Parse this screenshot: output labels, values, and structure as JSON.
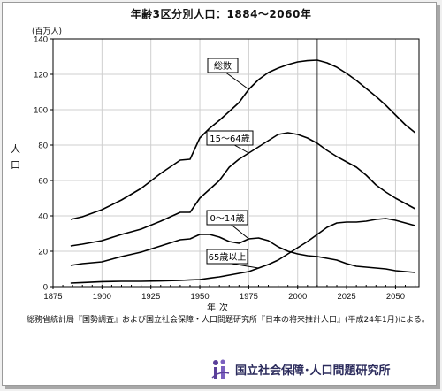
{
  "title": "年齢3区分別人口：1884～2060年",
  "chart_data": {
    "type": "line",
    "title": "年齢3区分別人口：1884～2060年",
    "xlabel": "年次",
    "ylabel": "人口",
    "unit": "(百万人)",
    "xlim": [
      1875,
      2062
    ],
    "ylim": [
      0,
      140
    ],
    "xticks": [
      1875,
      1900,
      1925,
      1950,
      1975,
      2000,
      2025,
      2050
    ],
    "yticks": [
      0,
      20,
      40,
      60,
      80,
      100,
      120,
      140
    ],
    "grid": true,
    "reference_line_x": 2010,
    "series": [
      {
        "name": "総数",
        "points": [
          [
            1884,
            38
          ],
          [
            1890,
            39.5
          ],
          [
            1900,
            43.5
          ],
          [
            1910,
            49
          ],
          [
            1920,
            55.5
          ],
          [
            1930,
            64
          ],
          [
            1940,
            71.5
          ],
          [
            1945,
            72
          ],
          [
            1950,
            84
          ],
          [
            1955,
            89.5
          ],
          [
            1960,
            94
          ],
          [
            1965,
            99
          ],
          [
            1970,
            104
          ],
          [
            1975,
            111.5
          ],
          [
            1980,
            117
          ],
          [
            1985,
            121
          ],
          [
            1990,
            123.5
          ],
          [
            1995,
            125.5
          ],
          [
            2000,
            127
          ],
          [
            2005,
            127.7
          ],
          [
            2010,
            128
          ],
          [
            2015,
            126.5
          ],
          [
            2020,
            124
          ],
          [
            2025,
            120.5
          ],
          [
            2030,
            116.5
          ],
          [
            2035,
            112
          ],
          [
            2040,
            107.5
          ],
          [
            2045,
            102.5
          ],
          [
            2050,
            97
          ],
          [
            2055,
            91.5
          ],
          [
            2060,
            87
          ]
        ]
      },
      {
        "name": "15～64歳",
        "points": [
          [
            1884,
            23
          ],
          [
            1890,
            24
          ],
          [
            1900,
            26
          ],
          [
            1910,
            29.5
          ],
          [
            1920,
            32.5
          ],
          [
            1930,
            37
          ],
          [
            1940,
            42
          ],
          [
            1945,
            42
          ],
          [
            1950,
            50
          ],
          [
            1955,
            55
          ],
          [
            1960,
            60
          ],
          [
            1965,
            67.5
          ],
          [
            1970,
            72
          ],
          [
            1975,
            75.5
          ],
          [
            1980,
            79
          ],
          [
            1985,
            82.5
          ],
          [
            1990,
            86
          ],
          [
            1995,
            87
          ],
          [
            2000,
            86
          ],
          [
            2005,
            84
          ],
          [
            2010,
            81
          ],
          [
            2015,
            77
          ],
          [
            2020,
            73.5
          ],
          [
            2025,
            70.5
          ],
          [
            2030,
            67.5
          ],
          [
            2035,
            63
          ],
          [
            2040,
            57.5
          ],
          [
            2045,
            53.5
          ],
          [
            2050,
            50
          ],
          [
            2055,
            47
          ],
          [
            2060,
            44
          ]
        ]
      },
      {
        "name": "0～14歳",
        "points": [
          [
            1884,
            12
          ],
          [
            1890,
            13
          ],
          [
            1900,
            14
          ],
          [
            1910,
            17
          ],
          [
            1920,
            19.5
          ],
          [
            1930,
            23
          ],
          [
            1940,
            26.5
          ],
          [
            1945,
            27
          ],
          [
            1950,
            29.5
          ],
          [
            1955,
            29.5
          ],
          [
            1960,
            28
          ],
          [
            1965,
            25.5
          ],
          [
            1970,
            24.5
          ],
          [
            1975,
            27
          ],
          [
            1980,
            27.5
          ],
          [
            1985,
            26
          ],
          [
            1990,
            22.5
          ],
          [
            1995,
            20
          ],
          [
            2000,
            18.5
          ],
          [
            2005,
            17.5
          ],
          [
            2010,
            17
          ],
          [
            2015,
            16
          ],
          [
            2020,
            15
          ],
          [
            2025,
            13
          ],
          [
            2030,
            11.5
          ],
          [
            2035,
            11
          ],
          [
            2040,
            10.5
          ],
          [
            2045,
            10
          ],
          [
            2050,
            9
          ],
          [
            2055,
            8.5
          ],
          [
            2060,
            8
          ]
        ]
      },
      {
        "name": "65歳以上",
        "points": [
          [
            1884,
            2
          ],
          [
            1890,
            2.3
          ],
          [
            1900,
            2.8
          ],
          [
            1910,
            3
          ],
          [
            1920,
            3
          ],
          [
            1930,
            3.2
          ],
          [
            1940,
            3.5
          ],
          [
            1945,
            3.8
          ],
          [
            1950,
            4
          ],
          [
            1955,
            4.8
          ],
          [
            1960,
            5.5
          ],
          [
            1965,
            6.5
          ],
          [
            1970,
            7.5
          ],
          [
            1975,
            8.5
          ],
          [
            1980,
            10.5
          ],
          [
            1985,
            12.5
          ],
          [
            1990,
            15
          ],
          [
            1995,
            18.5
          ],
          [
            2000,
            22
          ],
          [
            2005,
            25.5
          ],
          [
            2010,
            29.5
          ],
          [
            2015,
            33.5
          ],
          [
            2020,
            36
          ],
          [
            2025,
            36.5
          ],
          [
            2030,
            36.5
          ],
          [
            2035,
            37
          ],
          [
            2040,
            38
          ],
          [
            2045,
            38.5
          ],
          [
            2050,
            37.5
          ],
          [
            2055,
            36
          ],
          [
            2060,
            34.5
          ]
        ]
      }
    ]
  },
  "source_note": "総務省統計局『国勢調査』および国立社会保障・人口問題研究所『日本の将来推計人口』(平成24年1月)による。",
  "org_name": "国立社会保障･人口問題研究所",
  "colors": {
    "line": "#000000",
    "grid": "#cfcfcf",
    "logo": "#5a3f9a"
  }
}
